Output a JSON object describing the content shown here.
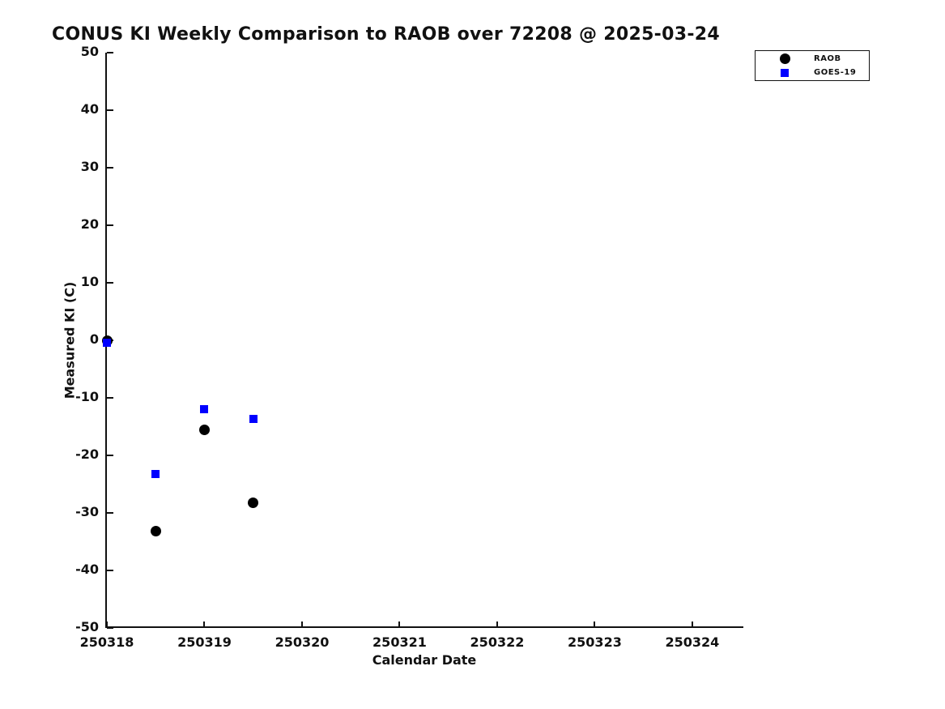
{
  "figure": {
    "background": "#ffffff",
    "text_color": "#111111"
  },
  "chart_data": {
    "type": "scatter",
    "title": "CONUS KI Weekly Comparison to RAOB over 72208 @ 2025-03-24",
    "xlabel": "Calendar Date",
    "ylabel": "Measured KI (C)",
    "xlim": [
      250318,
      250324.54
    ],
    "ylim": [
      -50,
      50
    ],
    "x_ticks": [
      250318,
      250319,
      250320,
      250321,
      250322,
      250323,
      250324
    ],
    "y_ticks": [
      50,
      40,
      30,
      20,
      10,
      0,
      -10,
      -20,
      -30,
      -40,
      -50
    ],
    "grid": false,
    "legend_position": "top-right",
    "series": [
      {
        "name": "RAOB",
        "marker": "circle",
        "color": "#000000",
        "x": [
          250318,
          250318.5,
          250319,
          250319.5
        ],
        "y": [
          -0.1,
          -33.1,
          -15.5,
          -28.3
        ]
      },
      {
        "name": "GOES-19",
        "marker": "square",
        "color": "#0000ff",
        "x": [
          250318,
          250318.5,
          250319,
          250319.5
        ],
        "y": [
          -0.4,
          -23.2,
          -12.0,
          -13.6
        ]
      }
    ]
  }
}
